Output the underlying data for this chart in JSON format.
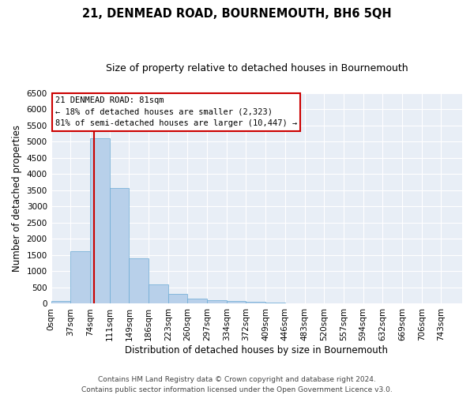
{
  "title": "21, DENMEAD ROAD, BOURNEMOUTH, BH6 5QH",
  "subtitle": "Size of property relative to detached houses in Bournemouth",
  "xlabel": "Distribution of detached houses by size in Bournemouth",
  "ylabel": "Number of detached properties",
  "footer_line1": "Contains HM Land Registry data © Crown copyright and database right 2024.",
  "footer_line2": "Contains public sector information licensed under the Open Government Licence v3.0.",
  "bar_labels": [
    "0sqm",
    "37sqm",
    "74sqm",
    "111sqm",
    "149sqm",
    "186sqm",
    "223sqm",
    "260sqm",
    "297sqm",
    "334sqm",
    "372sqm",
    "409sqm",
    "446sqm",
    "483sqm",
    "520sqm",
    "557sqm",
    "594sqm",
    "632sqm",
    "669sqm",
    "706sqm",
    "743sqm"
  ],
  "bar_heights": [
    75,
    1625,
    5100,
    3575,
    1400,
    600,
    300,
    150,
    100,
    75,
    50,
    30,
    10,
    5,
    2,
    1,
    0,
    0,
    0,
    0,
    0
  ],
  "bar_color": "#b8d0ea",
  "bar_edge_color": "#6aaad4",
  "annotation_text": "21 DENMEAD ROAD: 81sqm\n← 18% of detached houses are smaller (2,323)\n81% of semi-detached houses are larger (10,447) →",
  "annotation_box_color": "white",
  "annotation_box_edge_color": "#cc0000",
  "vline_x": 81,
  "vline_color": "#cc0000",
  "bin_width": 37,
  "ylim": [
    0,
    6500
  ],
  "yticks": [
    0,
    500,
    1000,
    1500,
    2000,
    2500,
    3000,
    3500,
    4000,
    4500,
    5000,
    5500,
    6000,
    6500
  ],
  "xlim_max": 780,
  "background_color": "#ffffff",
  "plot_bg_color": "#e8eef6",
  "title_fontsize": 10.5,
  "subtitle_fontsize": 9,
  "xlabel_fontsize": 8.5,
  "ylabel_fontsize": 8.5,
  "tick_fontsize": 7.5,
  "annotation_fontsize": 7.5,
  "footer_fontsize": 6.5
}
